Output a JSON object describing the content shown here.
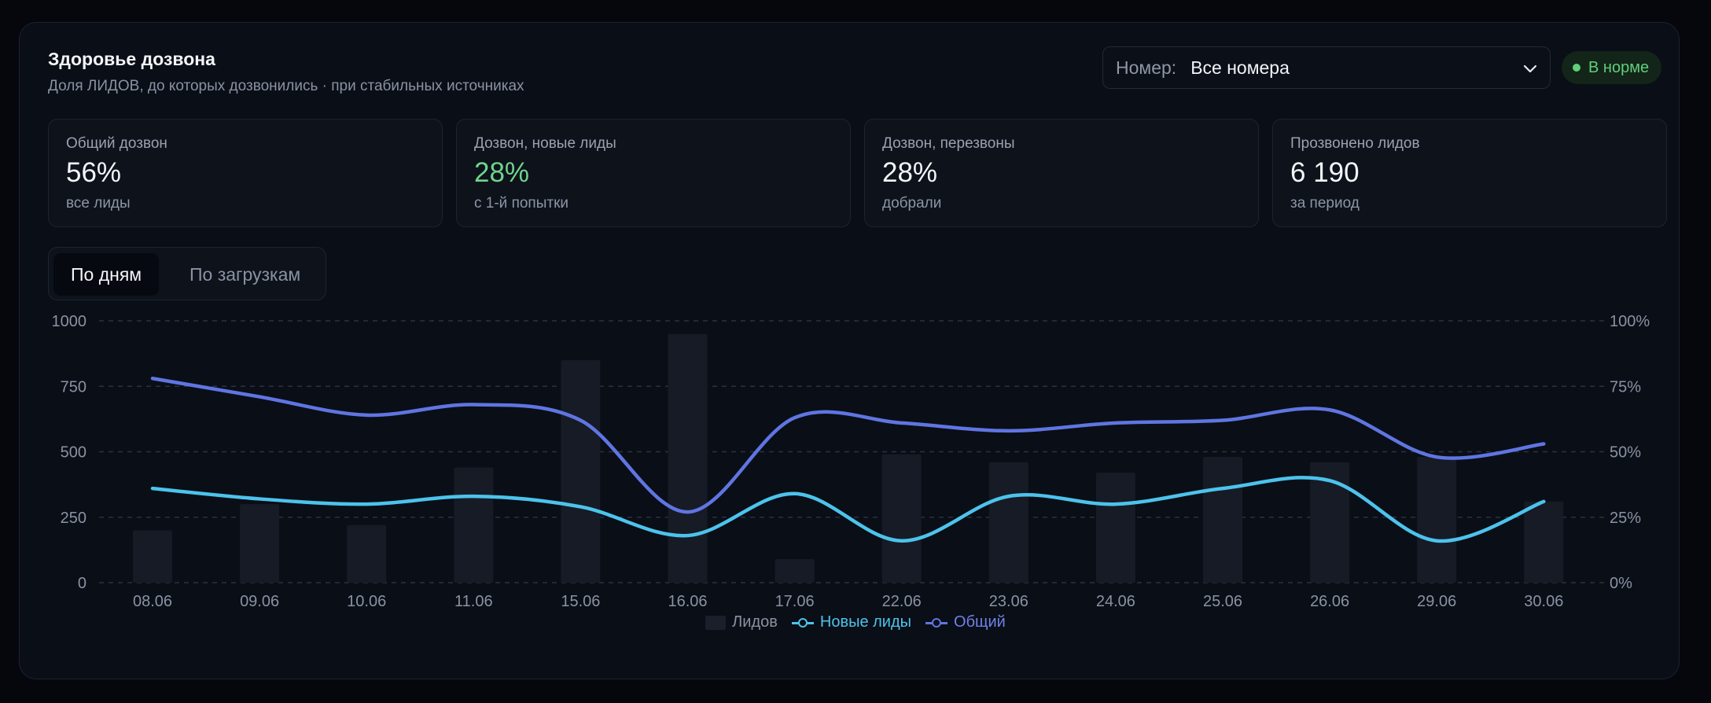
{
  "header": {
    "title": "Здоровье дозвона",
    "subtitle": "Доля ЛИДОВ, до которых дозвонились · при стабильных источниках"
  },
  "selector": {
    "label": "Номер:",
    "value": "Все номера",
    "icon": "chevron-down-icon"
  },
  "status_badge": {
    "label": "В норме",
    "color": "#5fcf7c"
  },
  "kpis": [
    {
      "label": "Общий дозвон",
      "value": "56%",
      "sub": "все лиды"
    },
    {
      "label": "Дозвон, новые лиды",
      "value": "28%",
      "sub": "с 1-й попытки"
    },
    {
      "label": "Дозвон, перезвоны",
      "value": "28%",
      "sub": "добрали"
    },
    {
      "label": "Прозвонено лидов",
      "value": "6 190",
      "sub": "за период"
    }
  ],
  "tabs": [
    {
      "label": "По дням",
      "active": true
    },
    {
      "label": "По загрузкам",
      "active": false
    }
  ],
  "colors": {
    "bars": "#171b26",
    "new": "#4cc3ec",
    "total": "#5f75e2",
    "grid": "#2a3140",
    "tick": "#8a92a3"
  },
  "chart_data": {
    "type": "bar",
    "categories": [
      "08.06",
      "09.06",
      "10.06",
      "11.06",
      "15.06",
      "16.06",
      "17.06",
      "22.06",
      "23.06",
      "24.06",
      "25.06",
      "26.06",
      "29.06",
      "30.06"
    ],
    "y_left": {
      "ylim": [
        0,
        1000
      ],
      "ticks": [
        "0",
        "250",
        "500",
        "750",
        "1000"
      ]
    },
    "y_right": {
      "ylim": [
        0,
        100
      ],
      "ticks": [
        "0%",
        "25%",
        "50%",
        "75%",
        "100%"
      ]
    },
    "grid": true,
    "legend_position": "bottom-center",
    "series": [
      {
        "name": "Лидов",
        "type": "bar",
        "axis": "left",
        "values": [
          200,
          300,
          220,
          440,
          850,
          950,
          90,
          490,
          460,
          420,
          480,
          460,
          480,
          310
        ]
      },
      {
        "name": "Новые лиды",
        "type": "line",
        "axis": "right",
        "values": [
          36,
          32,
          30,
          33,
          29,
          18,
          34,
          16,
          33,
          30,
          36,
          39,
          16,
          31
        ]
      },
      {
        "name": "Общий",
        "type": "line",
        "axis": "right",
        "values": [
          78,
          71,
          64,
          68,
          62,
          27,
          63,
          61,
          58,
          61,
          62,
          66,
          48,
          53
        ]
      }
    ]
  }
}
